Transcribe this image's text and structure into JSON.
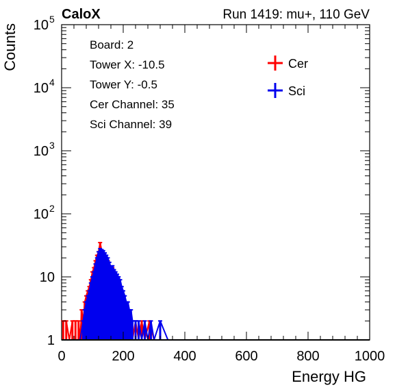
{
  "header": {
    "experiment": "CaloX",
    "run_info": "Run 1419: mu+, 110 GeV"
  },
  "info_box": [
    "Board: 2",
    "Tower X: -10.5",
    "Tower Y: -0.5",
    "Cer Channel: 35",
    "Sci Channel: 39"
  ],
  "chart_data": {
    "type": "line",
    "xlabel": "Energy HG",
    "ylabel": "Counts",
    "xlim": [
      0,
      1000
    ],
    "ylim": [
      1,
      100000
    ],
    "log_y": true,
    "x_ticks": [
      0,
      200,
      400,
      600,
      800,
      1000
    ],
    "x_tick_labels": [
      "0",
      "200",
      "400",
      "600",
      "800",
      "1000"
    ],
    "y_ticks": [
      1,
      10,
      100,
      1000,
      10000,
      100000
    ],
    "y_tick_labels": [
      {
        "base": "1",
        "exp": ""
      },
      {
        "base": "10",
        "exp": ""
      },
      {
        "base": "10",
        "exp": "2"
      },
      {
        "base": "10",
        "exp": "3"
      },
      {
        "base": "10",
        "exp": "4"
      },
      {
        "base": "10",
        "exp": "5"
      }
    ],
    "legend": {
      "placement": "top-right"
    },
    "series": [
      {
        "name": "Cer",
        "color": "#ff0000",
        "x": [
          5,
          15,
          25,
          35,
          45,
          55,
          60,
          65,
          70,
          75,
          80,
          85,
          90,
          95,
          100,
          105,
          110,
          115,
          120,
          125,
          130,
          135,
          140,
          145,
          150,
          155,
          160,
          165,
          170,
          175,
          180,
          185,
          190,
          195,
          200,
          205,
          210,
          215,
          220,
          225,
          230,
          240,
          250,
          260,
          270,
          285,
          300
        ],
        "y": [
          2,
          2,
          1,
          2,
          2,
          2,
          1,
          3,
          2,
          4,
          5,
          6,
          7,
          9,
          12,
          14,
          18,
          22,
          25,
          35,
          26,
          24,
          22,
          20,
          18,
          15,
          13,
          14,
          12,
          10,
          9,
          8,
          6,
          5,
          4,
          3,
          3,
          2,
          2,
          2,
          1,
          2,
          1,
          2,
          1,
          2,
          1
        ]
      },
      {
        "name": "Sci",
        "color": "#0000ee",
        "x": [
          60,
          70,
          75,
          80,
          85,
          90,
          95,
          100,
          105,
          110,
          115,
          120,
          125,
          130,
          135,
          140,
          145,
          150,
          155,
          160,
          165,
          170,
          175,
          180,
          185,
          190,
          195,
          200,
          205,
          210,
          215,
          220,
          225,
          230,
          240,
          250,
          260,
          270,
          280,
          290,
          300,
          320,
          345
        ],
        "y": [
          1,
          2,
          3,
          4,
          5,
          6,
          8,
          10,
          12,
          16,
          20,
          25,
          28,
          27,
          26,
          24,
          22,
          20,
          17,
          14,
          15,
          13,
          12,
          11,
          10,
          9,
          7,
          6,
          5,
          4,
          4,
          3,
          3,
          2,
          2,
          2,
          1,
          2,
          1,
          2,
          1,
          2,
          1
        ]
      }
    ]
  }
}
